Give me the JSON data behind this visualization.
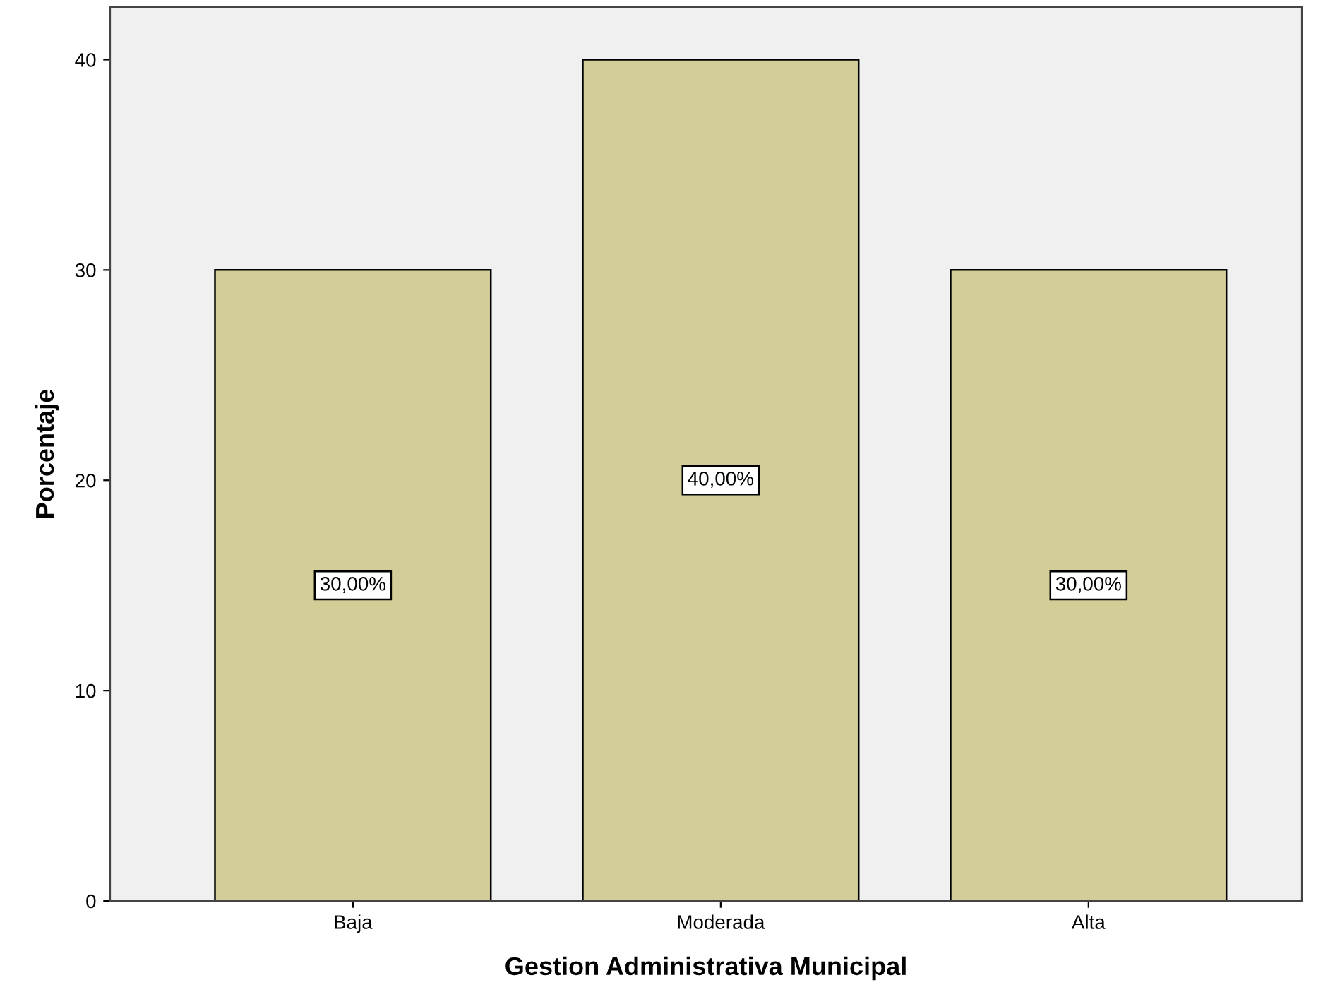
{
  "chart_data": {
    "type": "bar",
    "xlabel": "Gestion Administrativa Municipal",
    "ylabel": "Porcentaje",
    "categories": [
      "Baja",
      "Moderada",
      "Alta"
    ],
    "values": [
      30,
      40,
      30
    ],
    "value_labels": [
      "30,00%",
      "40,00%",
      "30,00%"
    ],
    "color": "#d3ce97",
    "ylim": [
      0,
      42.5
    ],
    "yticks": [
      0,
      10,
      20,
      30,
      40
    ],
    "grid": false,
    "legend": false
  }
}
